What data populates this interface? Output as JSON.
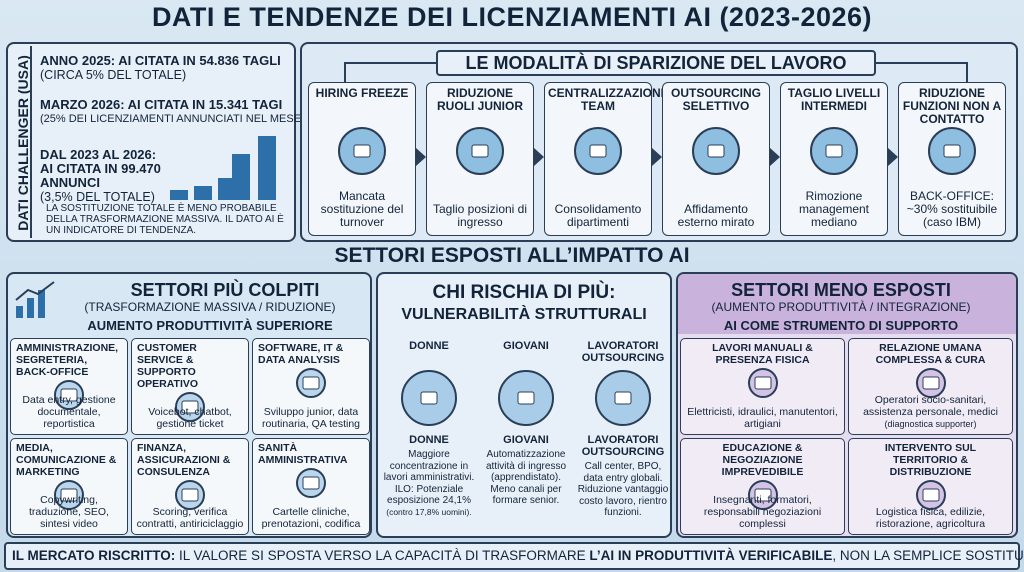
{
  "title": "DATI E TENDENZE DEI LICENZIAMENTI AI (2023-2026)",
  "challenger": {
    "side_label": "DATI CHALLENGER (USA)",
    "items": [
      {
        "head": "ANNO 2025: AI CITATA IN 54.836 TAGLI",
        "sub": "(CIRCA 5% DEL TOTALE)"
      },
      {
        "head": "MARZO 2026: AI CITATA IN 15.341 TAGI",
        "sub": "(25% DEI LICENZIAMENTI ANNUNCIATI NEL MESE)"
      },
      {
        "head": "DAL 2023 AL 2026:",
        "head2": "AI CITATA IN 99.470 ANNUNCI",
        "sub": "(3,5% DEL TOTALE)"
      }
    ],
    "note": "LA SOSTITUZIONE TOTALE È MENO PROBABILE DELLA TRASFORMAZIONE MASSIVA. IL DATO AI È UN INDICATORE DI TENDENZA."
  },
  "modes": {
    "title": "LE MODALITÀ DI SPARIZIONE DEL LAVORO",
    "steps": [
      {
        "title": "HIRING FREEZE",
        "desc": "Mancata sostituzione del turnover"
      },
      {
        "title": "RIDUZIONE RUOLI JUNIOR",
        "desc": "Taglio posizioni di ingresso"
      },
      {
        "title": "CENTRALIZZAZIONE TEAM",
        "desc": "Consolidamento dipartimenti"
      },
      {
        "title": "OUTSOURCING SELETTIVO",
        "desc": "Affidamento esterno mirato"
      },
      {
        "title": "TAGLIO LIVELLI INTERMEDI",
        "desc": "Rimozione management mediano"
      },
      {
        "title": "RIDUZIONE FUNZIONI NON A CONTATTO",
        "desc": "BACK-OFFICE: ~30% sostituibile (caso IBM)"
      }
    ]
  },
  "section_title": "SETTORI ESPOSTI ALL’IMPATTO AI",
  "most": {
    "title": "SETTORI PIÙ COLPITI",
    "subtitle": "(TRASFORMAZIONE MASSIVA / RIDUZIONE)",
    "tagline": "AUMENTO PRODUTTIVITÀ SUPERIORE",
    "cells": [
      {
        "title": "AMMINISTRAZIONE, SEGRETERIA, BACK-OFFICE",
        "desc": "Data entry, gestione documentale, reportistica"
      },
      {
        "title": "CUSTOMER SERVICE & SUPPORTO OPERATIVO",
        "desc": "Voicebot, chatbot, gestione ticket"
      },
      {
        "title": "SOFTWARE, IT & DATA ANALYSIS",
        "desc": "Sviluppo junior, data routinaria, QA testing"
      },
      {
        "title": "MEDIA, COMUNICAZIONE & MARKETING",
        "desc": "Copywriting, traduzione, SEO, sintesi video"
      },
      {
        "title": "FINANZA, ASSICURAZIONI & CONSULENZA",
        "desc": "Scoring, verifica contratti, antiriciclaggio"
      },
      {
        "title": "SANITÀ AMMINISTRATIVA",
        "desc": "Cartelle cliniche, prenotazioni, codifica"
      }
    ]
  },
  "risk": {
    "title": "CHI RISCHIA DI PIÙ:",
    "subtitle": "VULNERABILITÀ STRUTTURALI",
    "groups": [
      {
        "label": "DONNE",
        "name": "DONNE",
        "desc": "Maggiore concentrazione in lavori amministrativi. ILO: Potenziale esposizione 24,1%",
        "small": "(contro 17,8% uomini)."
      },
      {
        "label": "GIOVANI",
        "name": "GIOVANI",
        "desc": "Automatizzazione attività di ingresso (apprendistato). Meno canali per formare senior."
      },
      {
        "label": "LAVORATORI OUTSOURCING",
        "name": "LAVORATORI OUTSOURCING",
        "desc": "Call center, BPO, data entry globali. Riduzione vantaggio costo lavoro, rientro funzioni."
      }
    ]
  },
  "least": {
    "title": "SETTORI MENO ESPOSTI",
    "subtitle": "(AUMENTO PRODUTTIVITÀ / INTEGRAZIONE)",
    "tagline": "AI COME STRUMENTO DI SUPPORTO",
    "cells": [
      {
        "title": "LAVORI MANUALI & PRESENZA FISICA",
        "desc": "Elettricisti, idraulici, manutentori, artigiani"
      },
      {
        "title": "RELAZIONE UMANA COMPLESSA & CURA",
        "desc": "Operatori socio-sanitari, assistenza personale, medici",
        "small": "(diagnostica supporter)"
      },
      {
        "title": "EDUCAZIONE & NEGOZIAZIONE IMPREVEDIBILE",
        "desc": "Insegnanti, formatori, responsabili negoziazioni complessi"
      },
      {
        "title": "INTERVENTO SUL TERRITORIO & DISTRIBUZIONE",
        "desc": "Logistica fisica, edilizie, ristorazione, agricoltura"
      }
    ]
  },
  "footer": {
    "lead": "IL MERCATO RISCRITTO:",
    "text": "IL VALORE SI SPOSTA VERSO LA CAPACITÀ DI TRASFORMARE ",
    "bold": "L’AI IN PRODUTTIVITÀ VERIFICABILE",
    "end": ", NON LA SEMPLICE SOSTITUZIONE."
  }
}
